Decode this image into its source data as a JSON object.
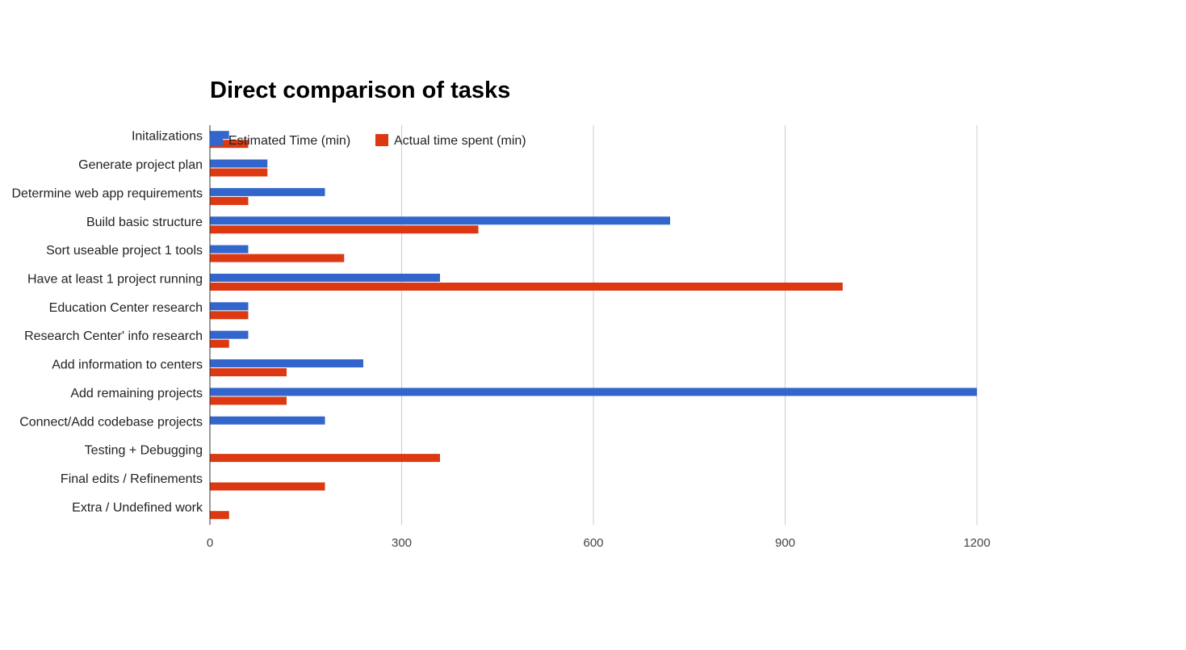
{
  "chart_data": {
    "type": "bar",
    "orientation": "horizontal",
    "title": "Direct comparison of tasks",
    "xlabel": "",
    "ylabel": "",
    "xlim": [
      0,
      1500
    ],
    "x_ticks": [
      "0",
      "300",
      "600",
      "900",
      "1200"
    ],
    "grid": true,
    "legend_position": "top-left",
    "categories": [
      "Initalizations",
      "Generate project plan",
      "Determine web app requirements",
      "Build basic structure",
      "Sort useable project 1 tools",
      "Have at least 1 project running",
      "Education Center research",
      "Research Center' info research",
      "Add information to centers",
      "Add remaining projects",
      "Connect/Add codebase projects",
      "Testing + Debugging",
      "Final edits / Refinements",
      "Extra / Undefined work"
    ],
    "series": [
      {
        "name": "Estimated Time (min)",
        "color": "#3366cc",
        "values": [
          30,
          90,
          180,
          720,
          60,
          360,
          60,
          60,
          240,
          1200,
          180,
          0,
          0,
          0
        ]
      },
      {
        "name": "Actual time spent (min)",
        "color": "#dc3912",
        "values": [
          60,
          90,
          60,
          420,
          210,
          990,
          60,
          30,
          120,
          120,
          0,
          360,
          180,
          30
        ]
      }
    ]
  }
}
